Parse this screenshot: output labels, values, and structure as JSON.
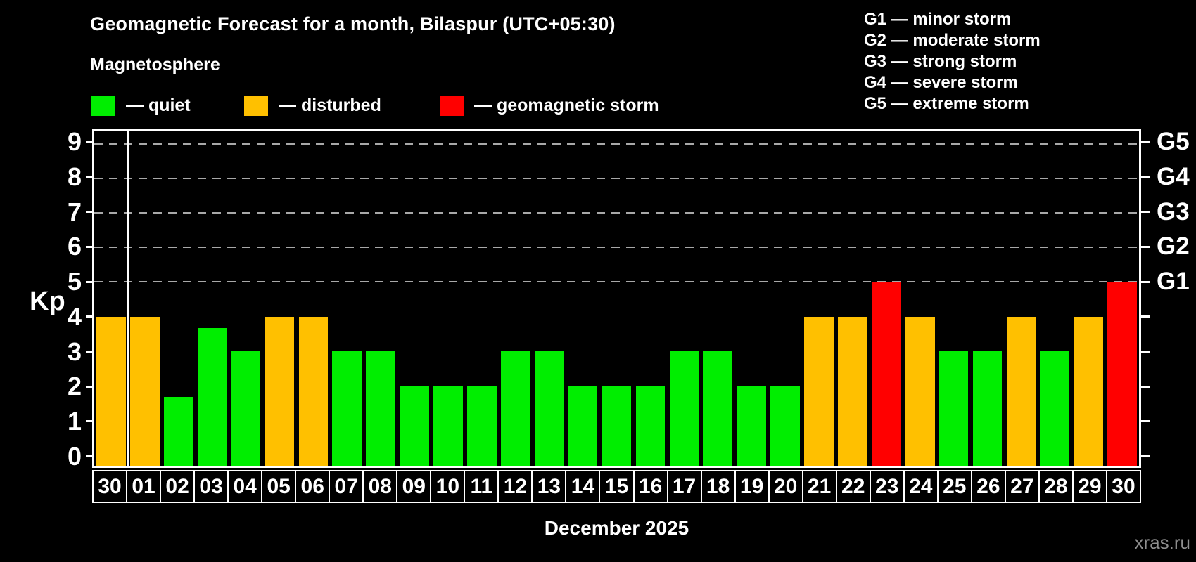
{
  "header": {
    "title": "Geomagnetic Forecast for a month, Bilaspur (UTC+05:30)",
    "subtitle": "Magnetosphere"
  },
  "legend": {
    "items": [
      {
        "key": "quiet",
        "swatch_color": "#00ee00",
        "label": "— quiet"
      },
      {
        "key": "disturbed",
        "swatch_color": "#ffc000",
        "label": "— disturbed"
      },
      {
        "key": "storm",
        "swatch_color": "#ff0000",
        "label": "— geomagnetic storm"
      }
    ]
  },
  "storm_scale_legend": {
    "items": [
      {
        "code": "G1",
        "separator": "—",
        "label": "minor storm"
      },
      {
        "code": "G2",
        "separator": "—",
        "label": "moderate storm"
      },
      {
        "code": "G3",
        "separator": "—",
        "label": "strong storm"
      },
      {
        "code": "G4",
        "separator": "—",
        "label": "severe storm"
      },
      {
        "code": "G5",
        "separator": "—",
        "label": "extreme storm"
      }
    ]
  },
  "colors": {
    "quiet": "#00ee00",
    "disturbed": "#ffc000",
    "storm": "#ff0000",
    "grid": "#a8a8a8",
    "axis": "#ffffff"
  },
  "watermark": "xras.ru",
  "chart_data": {
    "type": "bar",
    "title": "Geomagnetic Forecast for a month, Bilaspur (UTC+05:30)",
    "ylabel": "Kp",
    "xlabel": "December 2025",
    "categories": [
      "30",
      "01",
      "02",
      "03",
      "04",
      "05",
      "06",
      "07",
      "08",
      "09",
      "10",
      "11",
      "12",
      "13",
      "14",
      "15",
      "16",
      "17",
      "18",
      "19",
      "20",
      "21",
      "22",
      "23",
      "24",
      "25",
      "26",
      "27",
      "28",
      "29",
      "30"
    ],
    "values": [
      4,
      4,
      1.67,
      3.67,
      3,
      4,
      4,
      3,
      3,
      2,
      2,
      2,
      3,
      3,
      2,
      2,
      2,
      3,
      3,
      2,
      2,
      4,
      4,
      5,
      4,
      3,
      3,
      4,
      3,
      4,
      5
    ],
    "statuses": [
      "disturbed",
      "disturbed",
      "quiet",
      "quiet",
      "quiet",
      "disturbed",
      "disturbed",
      "quiet",
      "quiet",
      "quiet",
      "quiet",
      "quiet",
      "quiet",
      "quiet",
      "quiet",
      "quiet",
      "quiet",
      "quiet",
      "quiet",
      "quiet",
      "quiet",
      "disturbed",
      "disturbed",
      "storm",
      "disturbed",
      "quiet",
      "quiet",
      "disturbed",
      "quiet",
      "disturbed",
      "storm"
    ],
    "ylim": [
      0,
      9
    ],
    "axis_range": [
      -0.33,
      9.37
    ],
    "yticks": [
      0,
      1,
      2,
      3,
      4,
      5,
      6,
      7,
      8,
      9
    ],
    "gridlines": [
      5,
      6,
      7,
      8,
      9
    ],
    "right_axis_labels": [
      {
        "value": 5,
        "label": "G1"
      },
      {
        "value": 6,
        "label": "G2"
      },
      {
        "value": 7,
        "label": "G3"
      },
      {
        "value": 8,
        "label": "G4"
      },
      {
        "value": 9,
        "label": "G5"
      }
    ],
    "month_separator_after_index": 0,
    "grid": "dashed horizontal lines at storm levels only",
    "legend_position": "top"
  }
}
